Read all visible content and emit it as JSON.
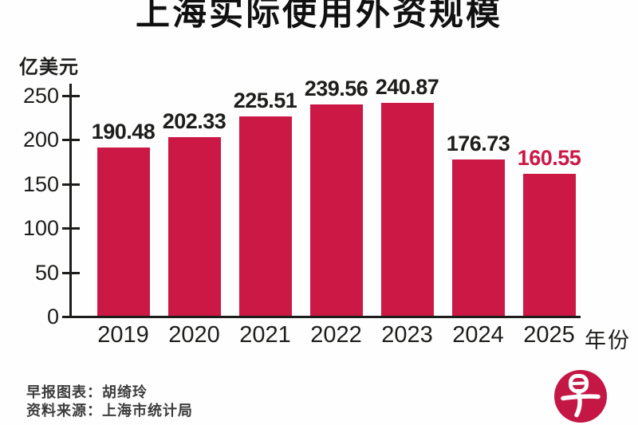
{
  "page": {
    "background": "#fefefe"
  },
  "chart_data": {
    "type": "bar",
    "title": "上海实际使用外资规模",
    "ylabel": "亿美元",
    "xlabel": "年份",
    "categories": [
      "2019",
      "2020",
      "2021",
      "2022",
      "2023",
      "2024",
      "2025"
    ],
    "values": [
      190.48,
      202.33,
      225.51,
      239.56,
      240.87,
      176.73,
      160.55
    ],
    "value_labels": [
      "190.48",
      "202.33",
      "225.51",
      "239.56",
      "240.87",
      "176.73",
      "160.55"
    ],
    "y_ticks": [
      0,
      50,
      100,
      150,
      200,
      250
    ],
    "ylim": [
      0,
      250
    ],
    "grid": false,
    "legend": "none",
    "bar_color": "#CB1845",
    "value_label_color": "#1d1d1b",
    "last_value_label_color": "#CB1845",
    "axis_color": "#1d1d1b"
  },
  "footer": {
    "credit": "早报图表：胡绮玲",
    "source": "资料来源：上海市统计局"
  },
  "logo": {
    "name": "zaobao-logo",
    "glyph": "早",
    "circle_color": "#C41746",
    "glyph_color": "#ffffff"
  }
}
